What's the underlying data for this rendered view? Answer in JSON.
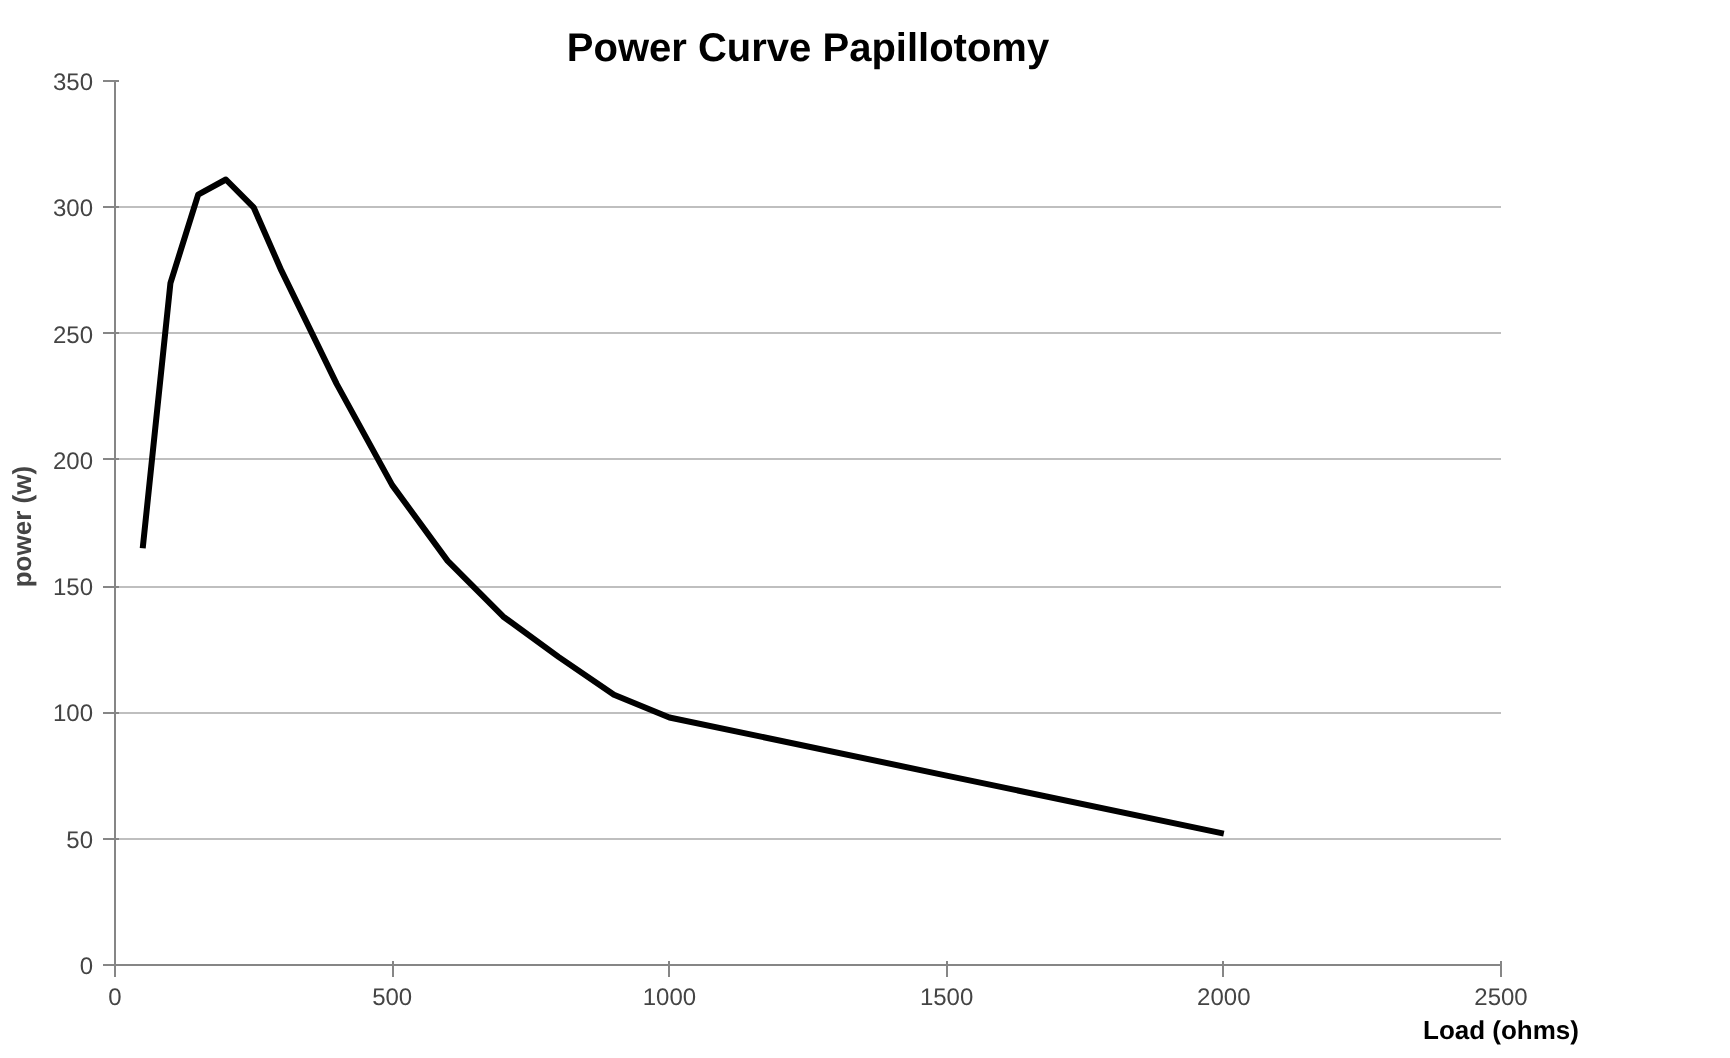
{
  "chart_data": {
    "type": "line",
    "title": "Power Curve Papillotomy",
    "xlabel": "Load (ohms)",
    "ylabel": "power  (w)",
    "x": [
      50,
      100,
      150,
      200,
      250,
      300,
      400,
      500,
      600,
      700,
      800,
      900,
      1000,
      1500,
      2000
    ],
    "series": [
      {
        "color": "#000000",
        "values": [
          165,
          270,
          305,
          311,
          300,
          275,
          230,
          190,
          160,
          138,
          122,
          107,
          98,
          75,
          52
        ]
      }
    ],
    "xlim": [
      0,
      2500
    ],
    "xticks": [
      0,
      500,
      1000,
      1500,
      2000,
      2500
    ],
    "ylim": [
      0,
      350
    ],
    "yticks": [
      0,
      50,
      100,
      150,
      200,
      250,
      300,
      350
    ],
    "grid": "y",
    "marker": "none",
    "line_style": "solid"
  }
}
